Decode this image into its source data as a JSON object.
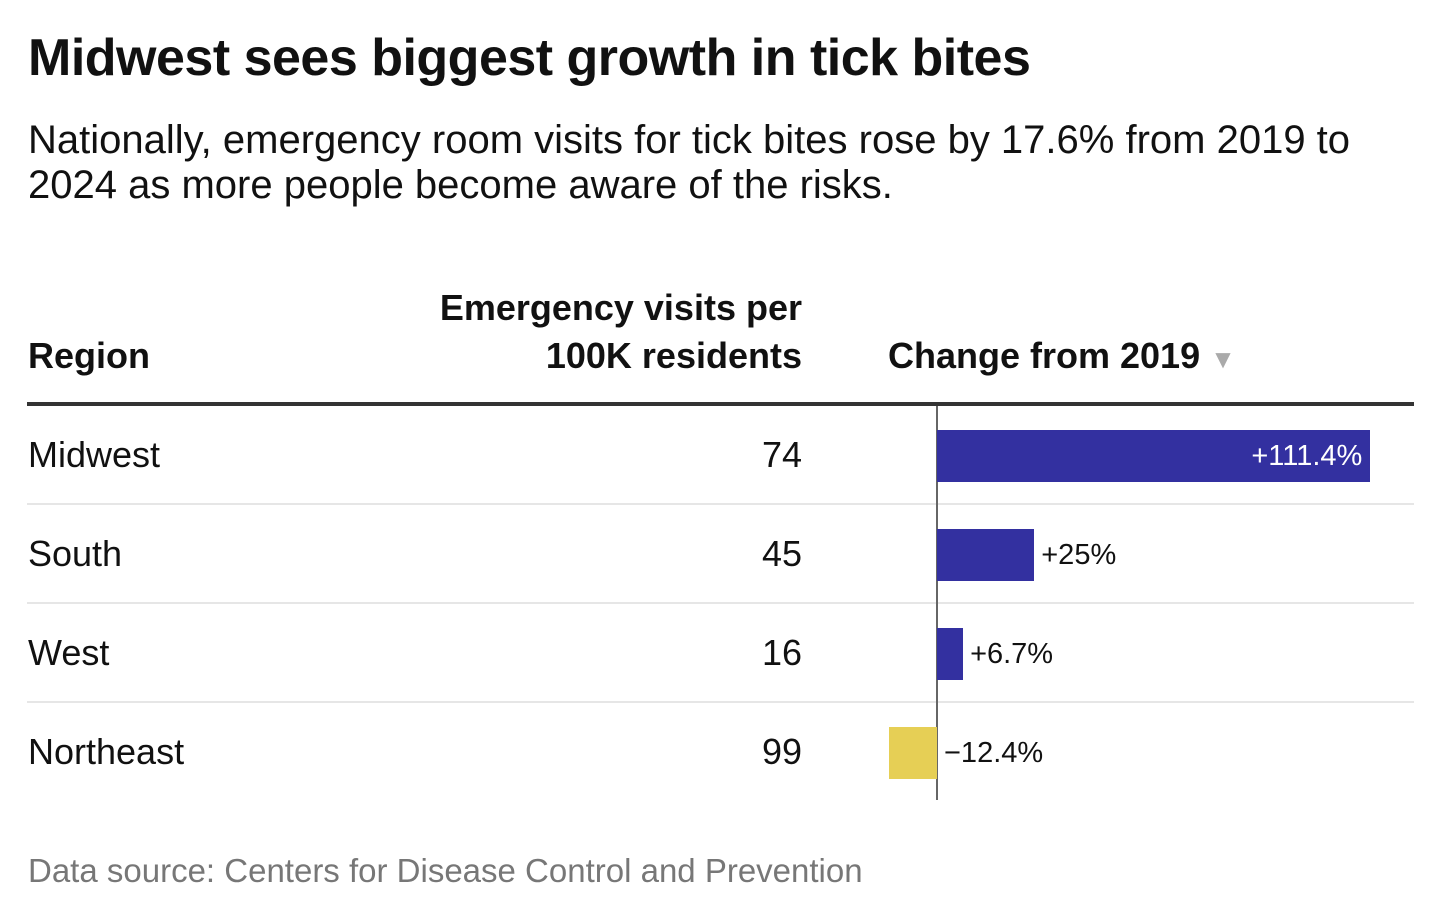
{
  "title": "Midwest sees biggest growth in tick bites",
  "subtitle": "Nationally, emergency room visits for tick bites rose by 17.6% from 2019 to 2024 as more people become aware of the risks.",
  "headers": {
    "region": "Region",
    "visits_line1": "Emergency visits per",
    "visits_line2": "100K residents",
    "change": "Change from 2019",
    "sort_icon": "▼"
  },
  "source": "Data source: Centers for Disease Control and Prevention",
  "colors": {
    "positive": "#3330a0",
    "negative": "#e6cf55"
  },
  "chart_data": {
    "type": "table",
    "columns": [
      "Region",
      "Emergency visits per 100K residents",
      "Change from 2019"
    ],
    "rows": [
      {
        "region": "Midwest",
        "visits": "74",
        "change": 111.4,
        "change_label": "+111.4%"
      },
      {
        "region": "South",
        "visits": "45",
        "change": 25,
        "change_label": "+25%"
      },
      {
        "region": "West",
        "visits": "16",
        "change": 6.7,
        "change_label": "+6.7%"
      },
      {
        "region": "Northeast",
        "visits": "99",
        "change": -12.4,
        "change_label": "−12.4%"
      }
    ]
  }
}
